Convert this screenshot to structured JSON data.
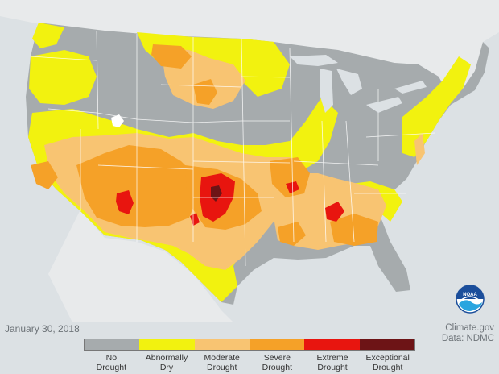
{
  "map": {
    "date": "January 30, 2018",
    "credit_line1": "Climate.gov",
    "credit_line2": "Data: NDMC",
    "logo_text": "NOAA"
  },
  "legend": {
    "items": [
      {
        "line1": "No",
        "line2": "Drought",
        "color": "#a6abad"
      },
      {
        "line1": "Abnormally",
        "line2": "Dry",
        "color": "#f2f20f"
      },
      {
        "line1": "Moderate",
        "line2": "Drought",
        "color": "#f8c472"
      },
      {
        "line1": "Severe",
        "line2": "Drought",
        "color": "#f5a128"
      },
      {
        "line1": "Extreme",
        "line2": "Drought",
        "color": "#e8150f"
      },
      {
        "line1": "Exceptional",
        "line2": "Drought",
        "color": "#6d1416"
      }
    ]
  },
  "colors": {
    "water": "#dce1e4",
    "neighbor_land": "#e8eaeb",
    "state_border": "#ffffff"
  }
}
